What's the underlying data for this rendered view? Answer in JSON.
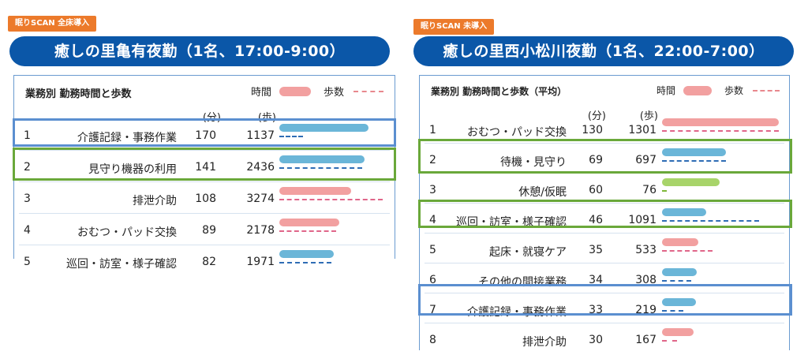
{
  "left": {
    "tag": "眠りSCAN 全床導入",
    "title": "癒しの里亀有夜勤（1名、17:00-9:00）",
    "table_title": "業務別 勤務時間と歩数",
    "legend_time": "時間",
    "legend_steps": "歩数",
    "unit_minutes": "(分)",
    "unit_steps": "(歩)",
    "rows": [
      {
        "num": "1",
        "label": "介護記録・事務作業",
        "minutes": "170",
        "steps": "1137",
        "time_frac": 0.82,
        "steps_frac": 0.22,
        "color": "#6bb6d8"
      },
      {
        "num": "2",
        "label": "見守り機器の利用",
        "minutes": "141",
        "steps": "2436",
        "time_frac": 0.78,
        "steps_frac": 0.76,
        "color": "#6bb6d8"
      },
      {
        "num": "3",
        "label": "排泄介助",
        "minutes": "108",
        "steps": "3274",
        "time_frac": 0.66,
        "steps_frac": 0.95,
        "color": "#f2a0a0"
      },
      {
        "num": "4",
        "label": "おむつ・パッド交換",
        "minutes": "89",
        "steps": "2178",
        "time_frac": 0.55,
        "steps_frac": 0.52,
        "color": "#f2a0a0"
      },
      {
        "num": "5",
        "label": "巡回・訪室・様子確認",
        "minutes": "82",
        "steps": "1971",
        "time_frac": 0.5,
        "steps_frac": 0.48,
        "color": "#6bb6d8"
      }
    ]
  },
  "right": {
    "tag": "眠りSCAN 未導入",
    "title": "癒しの里西小松川夜勤（1名、22:00-7:00）",
    "table_title": "業務別 勤務時間と歩数（平均）",
    "legend_time": "時間",
    "legend_steps": "歩数",
    "unit_minutes": "(分)",
    "unit_steps": "(歩)",
    "rows": [
      {
        "num": "1",
        "label": "おむつ・パッド交換",
        "minutes": "130",
        "steps": "1301",
        "time_frac": 1.0,
        "steps_frac": 1.0,
        "color": "#f2a0a0"
      },
      {
        "num": "2",
        "label": "待機・見守り",
        "minutes": "69",
        "steps": "697",
        "time_frac": 0.55,
        "steps_frac": 0.55,
        "color": "#6bb6d8"
      },
      {
        "num": "3",
        "label": "休憩/仮眠",
        "minutes": "60",
        "steps": "76",
        "time_frac": 0.49,
        "steps_frac": 0.04,
        "color": "#a8d46a"
      },
      {
        "num": "4",
        "label": "巡回・訪室・様子確認",
        "minutes": "46",
        "steps": "1091",
        "time_frac": 0.38,
        "steps_frac": 0.83,
        "color": "#6bb6d8"
      },
      {
        "num": "5",
        "label": "起床・就寝ケア",
        "minutes": "35",
        "steps": "533",
        "time_frac": 0.31,
        "steps_frac": 0.43,
        "color": "#f2a0a0"
      },
      {
        "num": "6",
        "label": "その他の間接業務",
        "minutes": "34",
        "steps": "308",
        "time_frac": 0.3,
        "steps_frac": 0.25,
        "color": "#6bb6d8"
      },
      {
        "num": "7",
        "label": "介護記録・事務作業",
        "minutes": "33",
        "steps": "219",
        "time_frac": 0.29,
        "steps_frac": 0.18,
        "color": "#6bb6d8"
      },
      {
        "num": "8",
        "label": "排泄介助",
        "minutes": "30",
        "steps": "167",
        "time_frac": 0.27,
        "steps_frac": 0.13,
        "color": "#f2a0a0"
      }
    ]
  },
  "colors": {
    "time_legend": "#f2a0a0",
    "steps_legend": "#e8888e",
    "steps_line": "#2f6db5",
    "steps_line_pink": "#e0668a",
    "highlight_blue": "#5b8fd0",
    "highlight_green": "#6aa83a"
  }
}
